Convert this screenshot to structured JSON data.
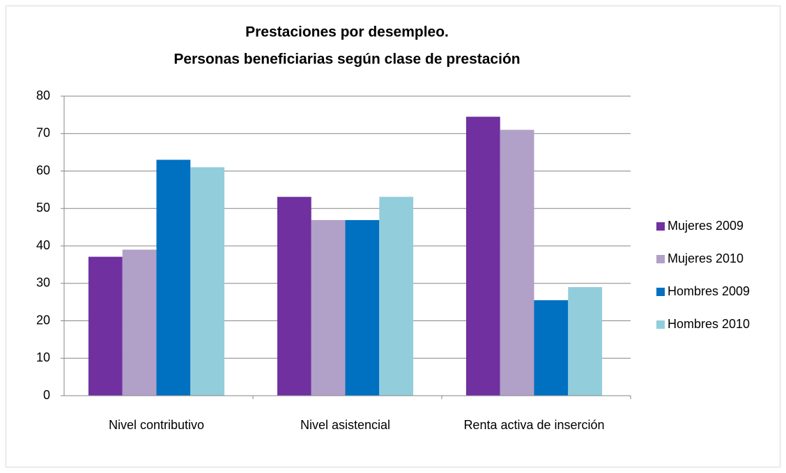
{
  "chart_data": {
    "type": "bar",
    "title": [
      "Prestaciones por desempleo.",
      "Personas beneficiarias según clase de prestación"
    ],
    "categories": [
      "Nivel contributivo",
      "Nivel asistencial",
      "Renta activa de inserción"
    ],
    "series": [
      {
        "name": "Mujeres 2009",
        "color": "#7030a0",
        "values": [
          37.1,
          53.1,
          74.5
        ]
      },
      {
        "name": "Mujeres 2010",
        "color": "#b1a0c7",
        "values": [
          39,
          46.9,
          71
        ]
      },
      {
        "name": "Hombres 2009",
        "color": "#0070c0",
        "values": [
          63,
          46.9,
          25.5
        ]
      },
      {
        "name": "Hombres 2010",
        "color": "#92cddc",
        "values": [
          61,
          53.1,
          29
        ]
      }
    ],
    "ylim": [
      0,
      80
    ],
    "yticks": [
      0,
      10,
      20,
      30,
      40,
      50,
      60,
      70,
      80
    ],
    "grid": true,
    "legend": "right"
  }
}
